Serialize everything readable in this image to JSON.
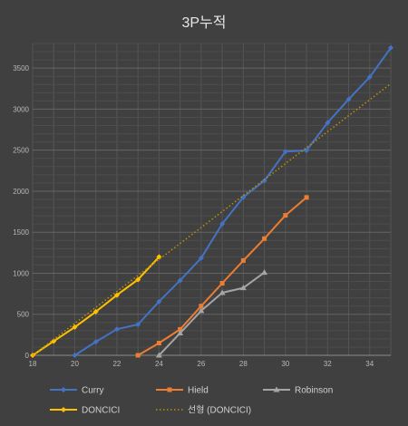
{
  "chart_data": {
    "type": "line",
    "title": "3P누적",
    "xlabel": "",
    "ylabel": "",
    "xlim": [
      18,
      35
    ],
    "ylim": [
      0,
      3800
    ],
    "x_ticks": [
      18,
      20,
      22,
      24,
      26,
      28,
      30,
      32,
      34
    ],
    "y_ticks": [
      0,
      500,
      1000,
      1500,
      2000,
      2500,
      3000,
      3500
    ],
    "grid": true,
    "legend_position": "bottom",
    "series": [
      {
        "name": "Curry",
        "color": "#4472c4",
        "marker": "diamond",
        "line_style": "solid",
        "points": [
          [
            20,
            0
          ],
          [
            21,
            165
          ],
          [
            22,
            318
          ],
          [
            23,
            376
          ],
          [
            24,
            655
          ],
          [
            25,
            912
          ],
          [
            26,
            1185
          ],
          [
            27,
            1602
          ],
          [
            28,
            1926
          ],
          [
            29,
            2128
          ],
          [
            30,
            2483
          ],
          [
            31,
            2496
          ],
          [
            32,
            2834
          ],
          [
            33,
            3119
          ],
          [
            34,
            3390
          ],
          [
            35,
            3747
          ]
        ]
      },
      {
        "name": "Hield",
        "color": "#ed7d31",
        "marker": "square",
        "line_style": "solid",
        "points": [
          [
            23,
            0
          ],
          [
            24,
            149
          ],
          [
            25,
            316
          ],
          [
            26,
            600
          ],
          [
            27,
            878
          ],
          [
            28,
            1155
          ],
          [
            29,
            1422
          ],
          [
            30,
            1706
          ],
          [
            31,
            1924
          ]
        ]
      },
      {
        "name": "Robinson",
        "color": "#a5a5a5",
        "marker": "triangle",
        "line_style": "solid",
        "points": [
          [
            24,
            0
          ],
          [
            25,
            270
          ],
          [
            26,
            542
          ],
          [
            27,
            762
          ],
          [
            28,
            822
          ],
          [
            29,
            1010
          ]
        ]
      },
      {
        "name": "DONCICI",
        "color": "#ffc000",
        "marker": "diamond",
        "line_style": "solid",
        "points": [
          [
            18,
            0
          ],
          [
            19,
            172
          ],
          [
            20,
            344
          ],
          [
            21,
            531
          ],
          [
            22,
            733
          ],
          [
            23,
            923
          ],
          [
            24,
            1200
          ]
        ]
      },
      {
        "name": "선형 (DONCICI)",
        "color": "#bf9000",
        "marker": "none",
        "line_style": "dotted",
        "points": [
          [
            18,
            0
          ],
          [
            35,
            3310
          ]
        ]
      }
    ]
  }
}
